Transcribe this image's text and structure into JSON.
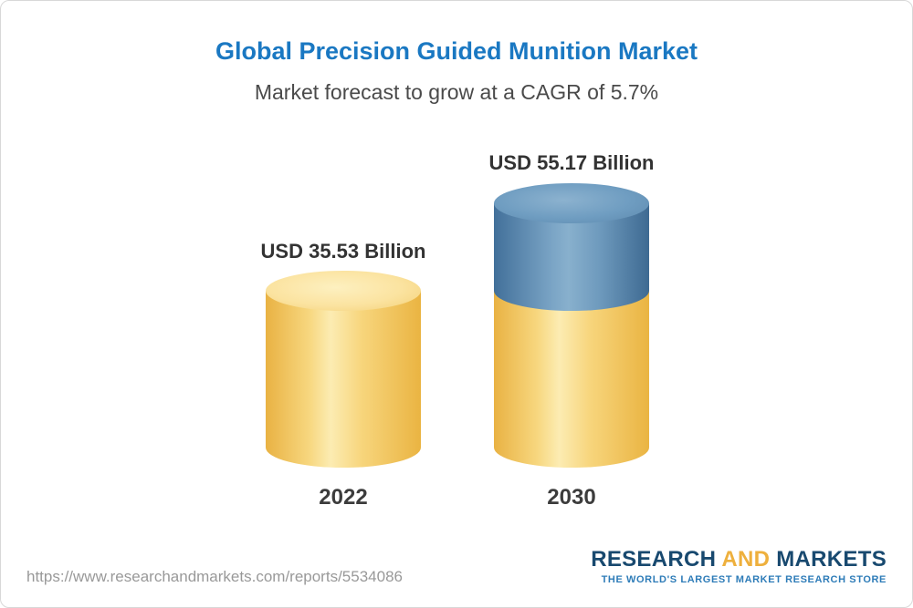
{
  "header": {
    "title": "Global Precision Guided Munition Market",
    "subtitle": "Market forecast to grow at a CAGR of 5.7%"
  },
  "chart_data": {
    "type": "bar",
    "style": "3d-cylinder",
    "unit": "USD Billion",
    "title": "Global Precision Guided Munition Market",
    "subtitle": "Market forecast to grow at a CAGR of 5.7%",
    "cagr_percent": 5.7,
    "categories": [
      "2022",
      "2030"
    ],
    "values": [
      35.53,
      55.17
    ],
    "value_labels": [
      "USD 35.53 Billion",
      "USD 55.17 Billion"
    ],
    "bars": [
      {
        "category": "2022",
        "label": "USD 35.53 Billion",
        "segments": [
          {
            "color": "gold",
            "value": 35.53
          }
        ]
      },
      {
        "category": "2030",
        "label": "USD 55.17 Billion",
        "segments": [
          {
            "color": "gold",
            "value": 35.53
          },
          {
            "color": "blue",
            "value": 19.64
          }
        ]
      }
    ],
    "colors": {
      "gold": "#f3c75f",
      "blue": "#5d8cb3",
      "title_blue": "#1a78c2",
      "label_text": "#333333"
    },
    "legend": "none",
    "grid": false
  },
  "footer": {
    "url": "https://www.researchandmarkets.com/reports/5534086",
    "logo": {
      "research": "RESEARCH",
      "and": "AND",
      "markets": "MARKETS",
      "tagline": "THE WORLD'S LARGEST MARKET RESEARCH STORE",
      "navy": "#18496f",
      "gold": "#eeb03d",
      "tagline_blue": "#2e7cb8"
    }
  }
}
